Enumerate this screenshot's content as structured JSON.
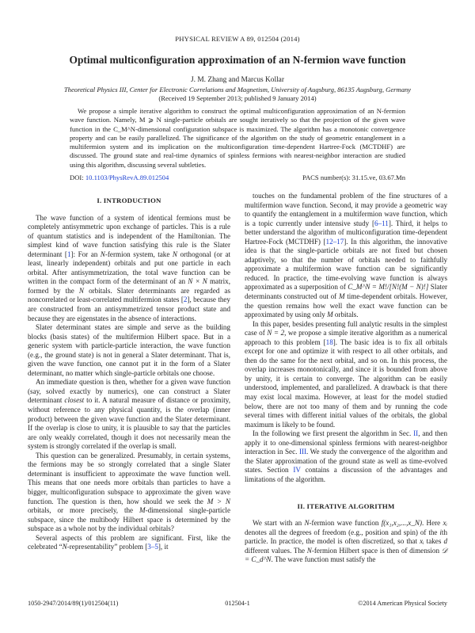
{
  "header": {
    "journal": "PHYSICAL REVIEW A 89, 012504 (2014)"
  },
  "title": "Optimal multiconfiguration approximation of an N-fermion wave function",
  "authors": "J. M. Zhang and Marcus Kollar",
  "affiliation": "Theoretical Physics III, Center for Electronic Correlations and Magnetism, University of Augsburg, 86135 Augsburg, Germany",
  "received": "(Received 19 September 2013; published 9 January 2014)",
  "abstract": "We propose a simple iterative algorithm to construct the optimal multiconfiguration approximation of an N-fermion wave function. Namely, M ⩾ N single-particle orbitals are sought iteratively so that the projection of the given wave function in the C_M^N-dimensional configuration subspace is maximized. The algorithm has a monotonic convergence property and can be easily parallelized. The significance of the algorithm on the study of geometric entanglement in a multifermion system and its implication on the multiconfiguration time-dependent Hartree-Fock (MCTDHF) are discussed. The ground state and real-time dynamics of spinless fermions with nearest-neighbor interaction are studied using this algorithm, discussing several subtleties.",
  "doi": {
    "label": "DOI:",
    "link": "10.1103/PhysRevA.89.012504"
  },
  "pacs": "PACS number(s): 31.15.ve, 03.67.Mn",
  "sections": {
    "intro_heading": "I. INTRODUCTION",
    "algo_heading": "II. ITERATIVE ALGORITHM"
  },
  "left_paragraphs": [
    [
      "The wave function of a system of identical fermions must be completely antisymmetric upon exchange of particles. This is a rule of quantum statistics and is independent of the Hamiltonian. The simplest kind of wave function satisfying this rule is the Slater determinant [",
      {
        "l": "1"
      },
      "]: For an ",
      {
        "i": "N"
      },
      "-fermion system, take ",
      {
        "i": "N"
      },
      " orthogonal (or at least, linearly independent) orbitals and put one particle in each orbital. After antisymmetrization, the total wave function can be written in the compact form of the determinant of an ",
      {
        "i": "N × N"
      },
      " matrix, formed by the ",
      {
        "i": "N"
      },
      " orbitals. Slater determinants are regarded as noncorrelated or least-correlated multifermion states [",
      {
        "l": "2"
      },
      "], because they are constructed from an antisymmetrized tensor product state and because they are eigenstates in the absence of interactions."
    ],
    [
      "Slater determinant states are simple and serve as the building blocks (basis states) of the multifermion Hilbert space. But in a generic system with particle-particle interaction, the wave function (e.g., the ground state) is not in general a Slater determinant. That is, given the wave function, one cannot put it in the form of a Slater determinant, no matter which single-particle orbitals one choose."
    ],
    [
      "An immediate question is then, whether for a given wave function (say, solved exactly by numerics), one can construct a Slater determinant ",
      {
        "i": "closest"
      },
      " to it. A natural measure of distance or proximity, without reference to any physical quantity, is the overlap (inner product) between the given wave function and the Slater determinant. If the overlap is close to unity, it is plausible to say that the particles are only weakly correlated, though it does not necessarily mean the system is strongly correlated if the overlap is small."
    ],
    [
      "This question can be generalized. Presumably, in certain systems, the fermions may be so strongly correlated that a single Slater determinant is insufficient to approximate the wave function well. This means that one needs more orbitals than particles to have a bigger, multiconfiguration subspace to approximate the given wave function. The question is then, how should we seek the ",
      {
        "i": "M > N"
      },
      " orbitals, or more precisely, the ",
      {
        "i": "M"
      },
      "-dimensional single-particle subspace, since the multibody Hilbert space is determined by the subspace as a whole not by the individual orbitals?"
    ],
    [
      "Several aspects of this problem are significant. First, like the celebrated “",
      {
        "i": "N"
      },
      "-representability” problem [",
      {
        "l": "3–5"
      },
      "], it"
    ]
  ],
  "right_paragraphs": [
    [
      "touches on the fundamental problem of the fine structures of a multifermion wave function. Second, it may provide a geometric way to quantify the entanglement in a multifermion wave function, which is a topic currently under intensive study [",
      {
        "l": "6–11"
      },
      "]. Third, it helps to better understand the algorithm of multiconfiguration time-dependent Hartree-Fock (MCTDHF) [",
      {
        "l": "12–17"
      },
      "]. In this algorithm, the innovative idea is that the single-particle orbitals are not fixed but chosen adaptively, so that the number of orbitals needed to faithfully approximate a multifermion wave function can be significantly reduced. In practice, the time-evolving wave function is always approximated as a superposition of ",
      {
        "i": "C_M^N = M!/[N!(M − N)!]"
      },
      " Slater determinants constructed out of ",
      {
        "i": "M"
      },
      " time-dependent orbitals. However, the question remains how well the exact wave function can be approximated by using only ",
      {
        "i": "M"
      },
      " orbitals."
    ],
    [
      "In this paper, besides presenting full analytic results in the simplest case of ",
      {
        "i": "N = 2"
      },
      ", we propose a simple iterative algorithm as a numerical approach to this problem [",
      {
        "l": "18"
      },
      "]. The basic idea is to fix all orbitals except for one and optimize it with respect to all other orbitals, and then do the same for the next orbital, and so on. In this process, the overlap increases monotonically, and since it is bounded from above by unity, it is certain to converge. The algorithm can be easily understood, implemented, and parallelized. A drawback is that there may exist local maxima. However, at least for the model studied below, there are not too many of them and by running the code several times with different initial values of the orbitals, the global maximum is likely to be found."
    ],
    [
      "In the following we first present the algorithm in Sec. ",
      {
        "l": "II"
      },
      ", and then apply it to one-dimensional spinless fermions with nearest-neighbor interaction in Sec. ",
      {
        "l": "III"
      },
      ". We study the convergence of the algorithm and the Slater approximation of the ground state as well as time-evolved states. Section ",
      {
        "l": "IV"
      },
      " contains a discussion of the advantages and limitations of the algorithm."
    ]
  ],
  "algo_paragraphs": [
    [
      "We start with an ",
      {
        "i": "N"
      },
      "-fermion wave function ",
      {
        "i": "f(x₁,x₂,...,x_N)"
      },
      ". Here ",
      {
        "i": "xᵢ"
      },
      " denotes all the degrees of freedom (e.g., position and spin) of the ",
      {
        "i": "i"
      },
      "th particle. In practice, the model is often discretized, so that ",
      {
        "i": "xᵢ"
      },
      " takes ",
      {
        "i": "d"
      },
      " different values. The ",
      {
        "i": "N"
      },
      "-fermion Hilbert space is then of dimension ",
      {
        "i": "𝒟 = C_d^N"
      },
      ". The wave function must satisfy the"
    ]
  ],
  "footer": {
    "left": "1050-2947/2014/89(1)/012504(11)",
    "center": "012504-1",
    "right": "©2014 American Physical Society"
  },
  "colors": {
    "text": "#222222",
    "link": "#1a3fd0"
  }
}
